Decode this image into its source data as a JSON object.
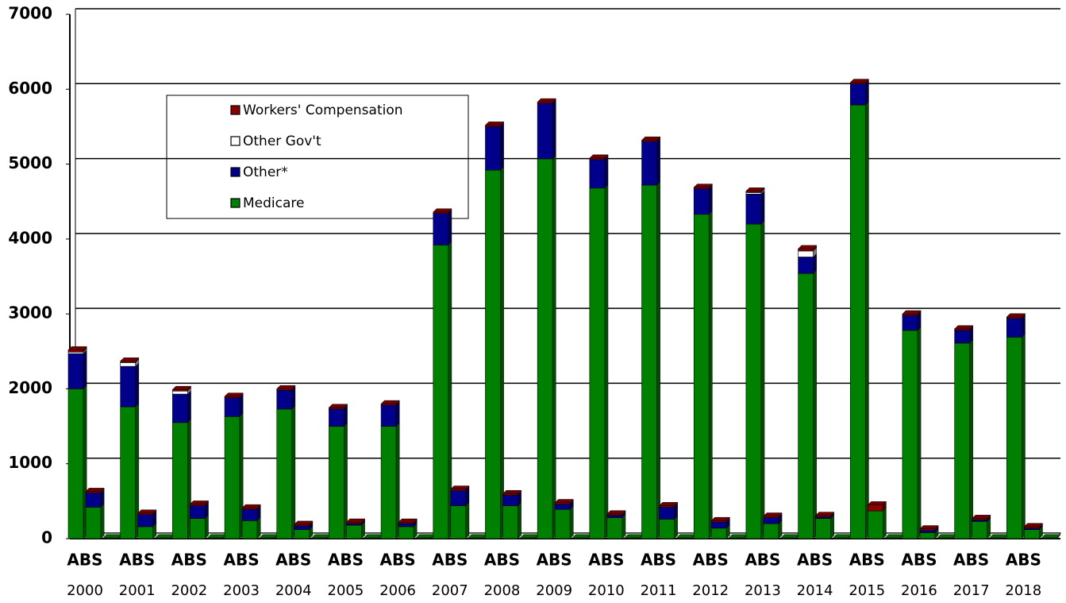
{
  "chart_data": {
    "type": "bar",
    "stacked": true,
    "groups": [
      "2000",
      "2001",
      "2002",
      "2003",
      "2004",
      "2005",
      "2006",
      "2007",
      "2008",
      "2009",
      "2010",
      "2011",
      "2012",
      "2013",
      "2014",
      "2015",
      "2016",
      "2017",
      "2018"
    ],
    "categories": [
      "ABS",
      null,
      null,
      "ABS",
      null,
      null,
      "ABS",
      null,
      null,
      "ABS",
      null,
      null,
      "ABS",
      null,
      null,
      "ABS",
      null,
      null,
      "ABS",
      null,
      null,
      "ABS",
      null,
      null,
      "ABS",
      null,
      null,
      "ABS",
      null,
      null,
      "ABS",
      null,
      null,
      "ABS",
      null,
      null,
      "ABS",
      null,
      null,
      "ABS",
      null,
      null,
      "ABS",
      null,
      null,
      "ABS",
      null,
      null,
      "ABS",
      null,
      null,
      "ABS",
      null,
      null,
      "ABS",
      null,
      null
    ],
    "series": [
      {
        "name": "Medicare",
        "color": "#008000",
        "values": [
          2000,
          420,
          10,
          1760,
          160,
          10,
          1550,
          270,
          10,
          1630,
          240,
          10,
          1730,
          120,
          10,
          1500,
          180,
          10,
          1500,
          160,
          10,
          3920,
          440,
          10,
          4920,
          440,
          10,
          5070,
          390,
          10,
          4680,
          280,
          10,
          4720,
          260,
          10,
          4330,
          140,
          10,
          4200,
          200,
          10,
          3540,
          270,
          10,
          5790,
          370,
          10,
          2780,
          80,
          10,
          2610,
          230,
          10,
          2690,
          120,
          10
        ]
      },
      {
        "name": "Other*",
        "color": "#00008b",
        "values": [
          470,
          190,
          0,
          540,
          160,
          0,
          380,
          170,
          0,
          250,
          150,
          0,
          250,
          50,
          0,
          230,
          20,
          0,
          280,
          40,
          0,
          420,
          200,
          0,
          580,
          140,
          0,
          740,
          70,
          0,
          380,
          30,
          0,
          580,
          160,
          0,
          340,
          80,
          0,
          400,
          80,
          0,
          220,
          20,
          0,
          280,
          0,
          0,
          200,
          30,
          0,
          170,
          20,
          0,
          250,
          20,
          0
        ]
      },
      {
        "name": "Other Gov't",
        "color": "#ffffff",
        "values": [
          20,
          0,
          0,
          50,
          0,
          0,
          40,
          0,
          0,
          0,
          0,
          0,
          0,
          0,
          0,
          0,
          0,
          0,
          0,
          0,
          0,
          0,
          0,
          0,
          0,
          0,
          0,
          0,
          0,
          0,
          0,
          0,
          0,
          0,
          0,
          0,
          0,
          0,
          0,
          20,
          0,
          0,
          80,
          0,
          0,
          0,
          0,
          0,
          0,
          0,
          0,
          0,
          0,
          0,
          0,
          0,
          0
        ]
      },
      {
        "name": "Workers' Compensation",
        "color": "#8b0000",
        "values": [
          30,
          20,
          0,
          20,
          20,
          0,
          20,
          20,
          0,
          20,
          20,
          0,
          20,
          20,
          0,
          20,
          20,
          0,
          20,
          20,
          0,
          20,
          20,
          0,
          20,
          20,
          0,
          20,
          20,
          0,
          20,
          20,
          0,
          20,
          20,
          0,
          20,
          20,
          0,
          20,
          20,
          0,
          30,
          20,
          0,
          20,
          80,
          0,
          20,
          20,
          0,
          20,
          20,
          0,
          20,
          20,
          0
        ]
      }
    ],
    "ylim": [
      0,
      7000
    ],
    "yticks": [
      0,
      1000,
      2000,
      3000,
      4000,
      5000,
      6000,
      7000
    ],
    "grid": true
  }
}
